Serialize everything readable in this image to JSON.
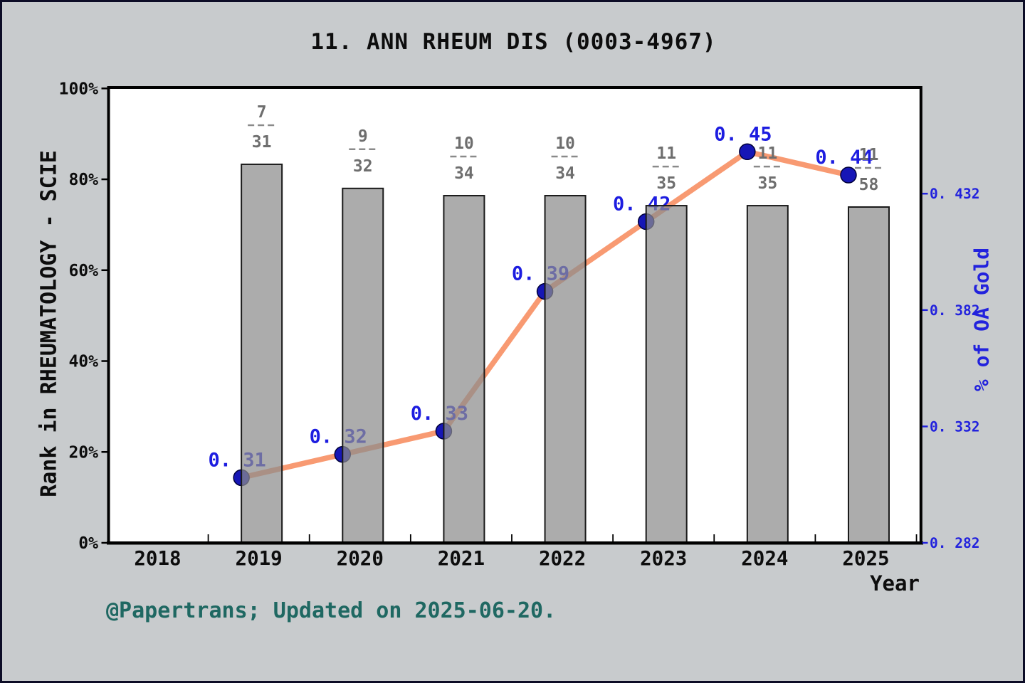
{
  "footer": {
    "text": "@Papertrans; Updated on 2025-06-20."
  },
  "colors": {
    "background": "#c8cbcd",
    "frame_border": "#0c0c26",
    "plot_background": "#ffffff",
    "bar_fill": "#8c8c8c",
    "bar_opacity": 0.72,
    "bar_apparent": "#ababab",
    "bar_edge": "#1a1a1a",
    "line": "#f89a72",
    "marker": "#1616b6",
    "marker_edge": "#00003a",
    "point_label": "#1d1de0",
    "right_axis": "#2222dd",
    "fraction_text": "#6e6e6e",
    "fraction_dash": "#8a8a8a",
    "axis_text": "#0d0d0d",
    "footer_text": "#1f6862"
  },
  "chart_data": {
    "type": "combo",
    "title": "11. ANN RHEUM DIS (0003-4967)",
    "x_axis": {
      "label": "Year",
      "ticks": [
        "2018",
        "2019",
        "2020",
        "2021",
        "2022",
        "2023",
        "2024",
        "2025"
      ],
      "tick_values": [
        2018,
        2019,
        2020,
        2021,
        2022,
        2023,
        2024,
        2025
      ]
    },
    "left_axis": {
      "label": "Rank in RHEUMATOLOGY - SCIE",
      "ticks": [
        "0%",
        "20%",
        "40%",
        "60%",
        "80%",
        "100%"
      ],
      "tick_values": [
        0,
        20,
        40,
        60,
        80,
        100
      ],
      "range": [
        0,
        100.2
      ],
      "grid": false
    },
    "right_axis": {
      "label": "% of OA Gold",
      "ticks": [
        "0. 282",
        "0. 332",
        "0. 382",
        "0. 432"
      ],
      "tick_values": [
        0.282,
        0.332,
        0.382,
        0.432
      ],
      "range": [
        0.282,
        0.4776
      ]
    },
    "series": [
      {
        "name": "rank-in-category-bars",
        "type": "bar",
        "axis": "left",
        "points": [
          {
            "year": 2019,
            "height_pct": 83.3,
            "label_num": "7",
            "label_den": "31"
          },
          {
            "year": 2020,
            "height_pct": 78.0,
            "label_num": "9",
            "label_den": "32"
          },
          {
            "year": 2021,
            "height_pct": 76.4,
            "label_num": "10",
            "label_den": "34"
          },
          {
            "year": 2022,
            "height_pct": 76.4,
            "label_num": "10",
            "label_den": "34"
          },
          {
            "year": 2023,
            "height_pct": 74.2,
            "label_num": "11",
            "label_den": "35"
          },
          {
            "year": 2024,
            "height_pct": 74.2,
            "label_num": "11",
            "label_den": "35"
          },
          {
            "year": 2025,
            "height_pct": 73.9,
            "label_num": "11",
            "label_den": "58"
          }
        ]
      },
      {
        "name": "oa-gold-line",
        "type": "line",
        "axis": "right",
        "points": [
          {
            "year": 2019,
            "value": 0.31,
            "label": "0. 31"
          },
          {
            "year": 2020,
            "value": 0.32,
            "label": "0. 32"
          },
          {
            "year": 2021,
            "value": 0.33,
            "label": "0. 33"
          },
          {
            "year": 2022,
            "value": 0.39,
            "label": "0. 39"
          },
          {
            "year": 2023,
            "value": 0.42,
            "label": "0. 42"
          },
          {
            "year": 2024,
            "value": 0.45,
            "label": "0. 45"
          },
          {
            "year": 2025,
            "value": 0.44,
            "label": "0. 44"
          }
        ]
      }
    ],
    "legend": "none"
  }
}
